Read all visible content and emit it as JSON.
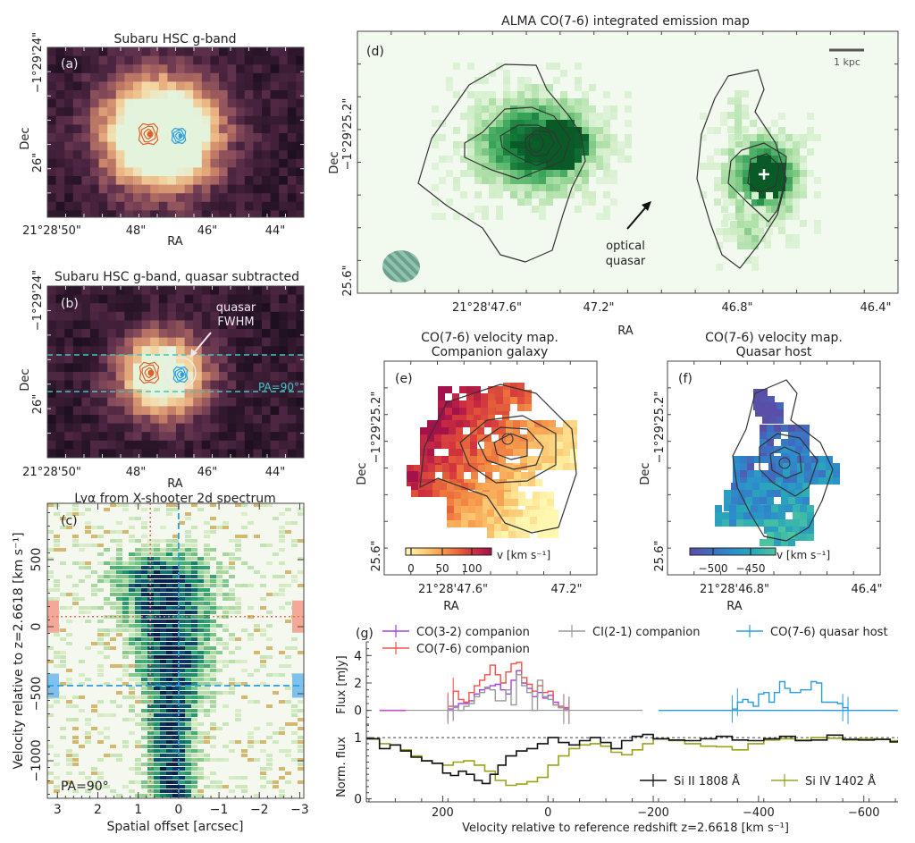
{
  "chart_data": [
    {
      "panel": "a",
      "type": "heatmap",
      "title": "Subaru HSC g-band",
      "label": "(a)",
      "xlabel": "RA",
      "ylabel": "Dec",
      "xticks": [
        "21°28'50\"",
        "48\"",
        "46\"",
        "44\""
      ],
      "yticks": [
        "−1°29'24\"",
        "26\""
      ],
      "colormap": "dark purple → orange → pale green (saturated core)",
      "contours": [
        {
          "name": "CO companion",
          "color": "#e0602a"
        },
        {
          "name": "CO quasar host",
          "color": "#2b9de0"
        }
      ]
    },
    {
      "panel": "b",
      "type": "heatmap",
      "title": "Subaru HSC g-band, quasar subtracted",
      "label": "(b)",
      "xlabel": "RA",
      "ylabel": "Dec",
      "xticks": [
        "21°28'50\"",
        "48\"",
        "46\"",
        "44\""
      ],
      "yticks": [
        "−1°29'24\"",
        "26\""
      ],
      "annotations": [
        {
          "text": "quasar\nFWHM",
          "lines": [
            "quasar",
            "FWHM"
          ]
        },
        {
          "text": "PA=90°"
        }
      ],
      "slit_color": "#3fc6c6"
    },
    {
      "panel": "c",
      "type": "heatmap",
      "title": "Lyα from X-shooter 2d spectrum",
      "label": "(c)",
      "xlabel": "Spatial offset [arcsec]",
      "ylabel": "Velocity relative to z=2.6618 [km s⁻¹]",
      "xlim": [
        3.25,
        -3.1
      ],
      "ylim": [
        -1280,
        920
      ],
      "xticks": [
        3,
        2,
        1,
        0,
        -1,
        -2,
        -3
      ],
      "xtick_labels": [
        "3",
        "2",
        "1",
        "0",
        "−1",
        "−2",
        "−3"
      ],
      "yticks": [
        500,
        0,
        -500,
        -1000
      ],
      "ytick_labels": [
        "500",
        "0",
        "−500",
        "−1000"
      ],
      "annotation": "PA=90°",
      "companion_line": {
        "x": 0.7,
        "y": 75,
        "color": "#e07050"
      },
      "quasar_line": {
        "x": 0,
        "y": -440,
        "color": "#2b9de0"
      }
    },
    {
      "panel": "d",
      "type": "heatmap",
      "title": "ALMA CO(7-6) integrated emission map",
      "label": "(d)",
      "xlabel": "RA",
      "ylabel": "Dec",
      "xticks": [
        "21°28'47.6\"",
        "47.2\"",
        "46.8\"",
        "46.4\""
      ],
      "yticks": [
        "−1°29'25.2\"",
        "25.6\""
      ],
      "scalebar": "1 kpc",
      "annotation": [
        "optical",
        "quasar"
      ]
    },
    {
      "panel": "e",
      "type": "heatmap",
      "title": [
        "CO(7-6) velocity map.",
        "Companion galaxy"
      ],
      "label": "(e)",
      "xlabel": "RA",
      "ylabel": "Dec",
      "xticks": [
        "21°28'47.6\"",
        "47.2\""
      ],
      "yticks": [
        "−1°29'25.2\"",
        "25.6\""
      ],
      "colorbar": {
        "ticks": [
          "0",
          "50",
          "100"
        ],
        "range": [
          -10,
          130
        ],
        "label": "v [km s⁻¹]",
        "colors": [
          "#fff7b0",
          "#fdd07a",
          "#f7a14f",
          "#ea6a3a",
          "#d0303e",
          "#a3124a"
        ]
      }
    },
    {
      "panel": "f",
      "type": "heatmap",
      "title": [
        "CO(7-6) velocity map.",
        "Quasar host"
      ],
      "label": "(f)",
      "xlabel": "RA",
      "ylabel": "Dec",
      "xticks": [
        "21°28'46.8\"",
        "46.4\""
      ],
      "yticks": [
        "−1°29'25.2\"",
        "25.6\""
      ],
      "colorbar": {
        "ticks": [
          "−500",
          "−450"
        ],
        "range": [
          -540,
          -420
        ],
        "label": "v [km s⁻¹]",
        "colors": [
          "#5a4fa8",
          "#3d6fc0",
          "#2b8fcc",
          "#2aa8b8",
          "#4cc4a0"
        ]
      }
    },
    {
      "panel": "g",
      "type": "line",
      "label": "(g)",
      "xlabel": "Velocity relative to reference redshift z=2.6618 [km s⁻¹]",
      "xlim": [
        345,
        -665
      ],
      "xticks": [
        200,
        0,
        -200,
        -400,
        -600
      ],
      "xtick_labels": [
        "200",
        "0",
        "−200",
        "−400",
        "−600"
      ],
      "top": {
        "ylabel": "Flux [mJy]",
        "ylim": [
          -1,
          5
        ],
        "yticks": [
          0,
          2,
          4
        ],
        "series": [
          {
            "name": "CO(3-2) companion",
            "color": "#a040e0",
            "x": [
              190,
              180,
              170,
              160,
              150,
              140,
              130,
              120,
              110,
              100,
              90,
              80,
              70,
              60,
              50,
              40,
              30,
              20,
              10,
              0,
              -10,
              -20,
              -30,
              -40
            ],
            "y": [
              0.1,
              0.3,
              0.5,
              0.5,
              0.7,
              1.2,
              1.5,
              1.6,
              1.8,
              1.9,
              1.5,
              1.2,
              2.2,
              2.9,
              2.0,
              1.6,
              1.0,
              1.3,
              0.9,
              1.1,
              0.6,
              0.2,
              0.1,
              0.0
            ]
          },
          {
            "name": "CO(7-6) companion",
            "color": "#f0504a",
            "x": [
              190,
              180,
              170,
              160,
              150,
              140,
              130,
              120,
              110,
              100,
              90,
              80,
              70,
              60,
              50,
              40,
              30,
              20,
              10,
              0,
              -10,
              -20,
              -30,
              -40
            ],
            "y": [
              0.3,
              1.4,
              0.8,
              0.6,
              1.3,
              1.8,
              2.2,
              2.6,
              3.3,
              2.6,
              2.0,
              2.8,
              3.4,
              3.5,
              2.4,
              1.9,
              1.4,
              1.8,
              1.3,
              1.4,
              0.4,
              0.3,
              0.2,
              0.0
            ]
          },
          {
            "name": "CI(2-1) companion",
            "color": "#999999",
            "x": [
              190,
              180,
              170,
              160,
              150,
              140,
              130,
              120,
              110,
              100,
              90,
              80,
              70,
              60,
              50,
              40,
              30,
              20,
              10,
              0,
              -10,
              -20,
              -30,
              -40
            ],
            "y": [
              0.0,
              0.2,
              0.0,
              0.3,
              0.5,
              1.0,
              1.3,
              1.7,
              1.5,
              0.7,
              0.7,
              1.5,
              0.4,
              2.6,
              1.8,
              1.3,
              0.0,
              2.2,
              1.0,
              0.8,
              0.4,
              0.2,
              0.0,
              0.0
            ]
          },
          {
            "name": "CO(7-6) quasar host",
            "color": "#2a9ddc",
            "x": [
              -350,
              -360,
              -370,
              -380,
              -390,
              -400,
              -410,
              -420,
              -430,
              -440,
              -450,
              -460,
              -470,
              -480,
              -490,
              -500,
              -510,
              -520,
              -530,
              -540,
              -550,
              -560,
              -570
            ],
            "y": [
              0.1,
              0.6,
              0.8,
              0.6,
              0.3,
              1.2,
              1.3,
              0.6,
              1.3,
              2.1,
              1.6,
              1.3,
              1.3,
              1.5,
              1.5,
              2.1,
              2.0,
              0.6,
              0.6,
              0.6,
              0.5,
              0.2,
              0.0
            ]
          }
        ]
      },
      "bottom": {
        "ylabel": "Norm. flux",
        "ylim": [
          -0.05,
          1.22
        ],
        "yticks": [
          0,
          1
        ],
        "reference_line": 1,
        "series": [
          {
            "name": "Si II 1808 Å",
            "color": "#111111",
            "x": [
              345,
              320,
              300,
              280,
              260,
              240,
              220,
              200,
              185,
              170,
              155,
              140,
              125,
              110,
              95,
              80,
              60,
              40,
              20,
              0,
              -20,
              -40,
              -60,
              -80,
              -100,
              -120,
              -140,
              -160,
              -180,
              -200,
              -230,
              -260,
              -290,
              -320,
              -350,
              -380,
              -410,
              -440,
              -470,
              -500,
              -530,
              -560,
              -590,
              -620,
              -650,
              -665
            ],
            "y": [
              0.98,
              0.82,
              0.88,
              0.78,
              0.68,
              0.62,
              0.58,
              0.42,
              0.38,
              0.45,
              0.4,
              0.3,
              0.25,
              0.4,
              0.55,
              0.7,
              0.78,
              0.82,
              0.9,
              1.0,
              0.92,
              0.88,
              0.95,
              1.0,
              0.92,
              0.82,
              0.95,
              1.02,
              1.05,
              0.98,
              0.96,
              0.95,
              0.98,
              1.02,
              0.96,
              0.95,
              0.98,
              1.02,
              0.95,
              0.96,
              1.04,
              0.97,
              0.96,
              0.97,
              0.93,
              0.95
            ]
          },
          {
            "name": "Si IV 1402 Å",
            "color": "#9aa21a",
            "x": [
              345,
              320,
              300,
              280,
              260,
              240,
              220,
              200,
              180,
              160,
              140,
              120,
              100,
              80,
              60,
              40,
              20,
              0,
              -20,
              -40,
              -60,
              -80,
              -100,
              -120,
              -140,
              -160,
              -180,
              -200,
              -230,
              -260,
              -290,
              -320,
              -350,
              -380,
              -410,
              -440,
              -470,
              -500,
              -530,
              -560,
              -590,
              -620,
              -650,
              -665
            ],
            "y": [
              0.98,
              0.9,
              0.88,
              0.8,
              0.7,
              0.62,
              0.58,
              0.55,
              0.6,
              0.62,
              0.55,
              0.45,
              0.3,
              0.22,
              0.24,
              0.28,
              0.35,
              0.55,
              0.7,
              0.82,
              0.88,
              0.9,
              0.86,
              0.76,
              0.72,
              0.8,
              0.9,
              0.98,
              0.95,
              0.9,
              0.86,
              0.85,
              0.8,
              0.9,
              0.96,
              0.98,
              0.96,
              1.0,
              0.99,
              0.96,
              0.98,
              0.97,
              0.95,
              0.94
            ]
          }
        ]
      },
      "legend": [
        "CO(3-2) companion",
        "CO(7-6) companion",
        "CI(2-1) companion",
        "CO(7-6) quasar host",
        "Si II 1808 Å",
        "Si IV 1402 Å"
      ]
    }
  ]
}
